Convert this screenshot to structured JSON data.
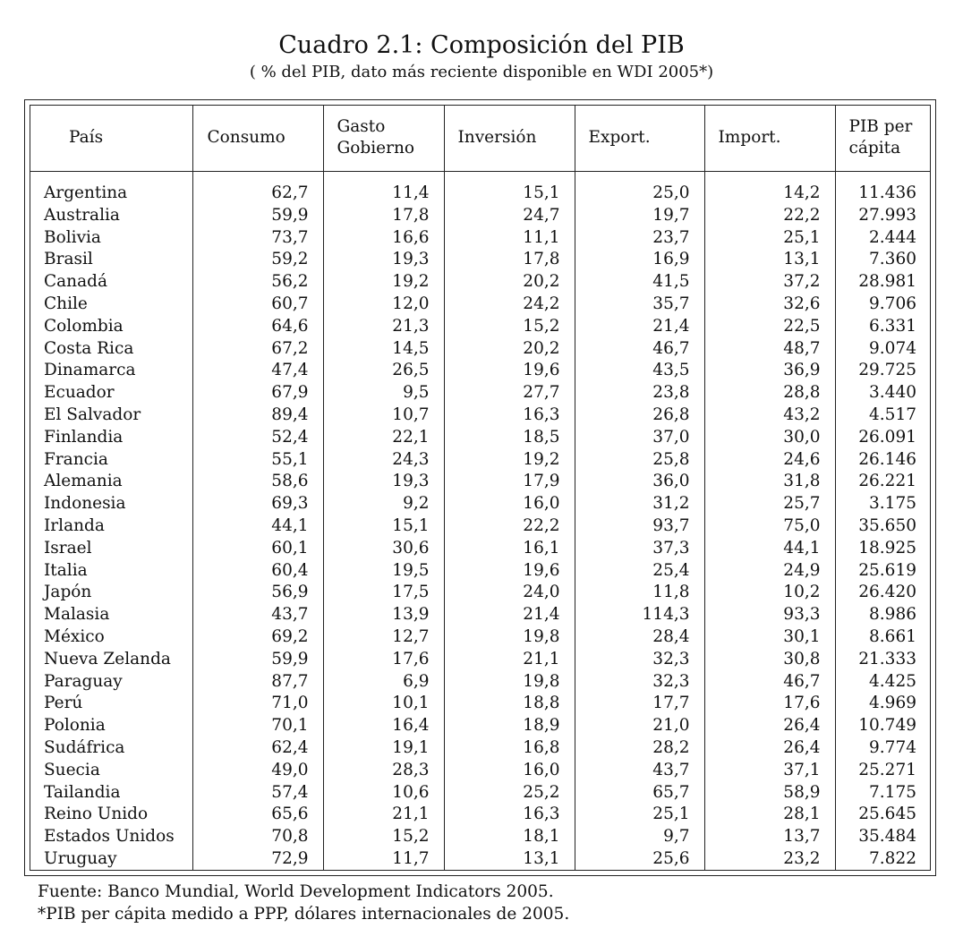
{
  "title": "Cuadro 2.1: Composición del PIB",
  "subtitle": "( % del PIB, dato más reciente disponible en WDI 2005*)",
  "headers": {
    "pais": "País",
    "consumo": "Consumo",
    "gasto_line1": "Gasto",
    "gasto_line2": "Gobierno",
    "inversion": "Inversión",
    "export": "Export.",
    "import": "Import.",
    "pib_line1": "PIB per",
    "pib_line2": "cápita"
  },
  "rows": [
    [
      "Argentina",
      "62,7",
      "11,4",
      "15,1",
      "25,0",
      "14,2",
      "11.436"
    ],
    [
      "Australia",
      "59,9",
      "17,8",
      "24,7",
      "19,7",
      "22,2",
      "27.993"
    ],
    [
      "Bolivia",
      "73,7",
      "16,6",
      "11,1",
      "23,7",
      "25,1",
      "2.444"
    ],
    [
      "Brasil",
      "59,2",
      "19,3",
      "17,8",
      "16,9",
      "13,1",
      "7.360"
    ],
    [
      "Canadá",
      "56,2",
      "19,2",
      "20,2",
      "41,5",
      "37,2",
      "28.981"
    ],
    [
      "Chile",
      "60,7",
      "12,0",
      "24,2",
      "35,7",
      "32,6",
      "9.706"
    ],
    [
      "Colombia",
      "64,6",
      "21,3",
      "15,2",
      "21,4",
      "22,5",
      "6.331"
    ],
    [
      "Costa Rica",
      "67,2",
      "14,5",
      "20,2",
      "46,7",
      "48,7",
      "9.074"
    ],
    [
      "Dinamarca",
      "47,4",
      "26,5",
      "19,6",
      "43,5",
      "36,9",
      "29.725"
    ],
    [
      "Ecuador",
      "67,9",
      "9,5",
      "27,7",
      "23,8",
      "28,8",
      "3.440"
    ],
    [
      "El Salvador",
      "89,4",
      "10,7",
      "16,3",
      "26,8",
      "43,2",
      "4.517"
    ],
    [
      "Finlandia",
      "52,4",
      "22,1",
      "18,5",
      "37,0",
      "30,0",
      "26.091"
    ],
    [
      "Francia",
      "55,1",
      "24,3",
      "19,2",
      "25,8",
      "24,6",
      "26.146"
    ],
    [
      "Alemania",
      "58,6",
      "19,3",
      "17,9",
      "36,0",
      "31,8",
      "26.221"
    ],
    [
      "Indonesia",
      "69,3",
      "9,2",
      "16,0",
      "31,2",
      "25,7",
      "3.175"
    ],
    [
      "Irlanda",
      "44,1",
      "15,1",
      "22,2",
      "93,7",
      "75,0",
      "35.650"
    ],
    [
      "Israel",
      "60,1",
      "30,6",
      "16,1",
      "37,3",
      "44,1",
      "18.925"
    ],
    [
      "Italia",
      "60,4",
      "19,5",
      "19,6",
      "25,4",
      "24,9",
      "25.619"
    ],
    [
      "Japón",
      "56,9",
      "17,5",
      "24,0",
      "11,8",
      "10,2",
      "26.420"
    ],
    [
      "Malasia",
      "43,7",
      "13,9",
      "21,4",
      "114,3",
      "93,3",
      "8.986"
    ],
    [
      "México",
      "69,2",
      "12,7",
      "19,8",
      "28,4",
      "30,1",
      "8.661"
    ],
    [
      "Nueva Zelanda",
      "59,9",
      "17,6",
      "21,1",
      "32,3",
      "30,8",
      "21.333"
    ],
    [
      "Paraguay",
      "87,7",
      "6,9",
      "19,8",
      "32,3",
      "46,7",
      "4.425"
    ],
    [
      "Perú",
      "71,0",
      "10,1",
      "18,8",
      "17,7",
      "17,6",
      "4.969"
    ],
    [
      "Polonia",
      "70,1",
      "16,4",
      "18,9",
      "21,0",
      "26,4",
      "10.749"
    ],
    [
      "Sudáfrica",
      "62,4",
      "19,1",
      "16,8",
      "28,2",
      "26,4",
      "9.774"
    ],
    [
      "Suecia",
      "49,0",
      "28,3",
      "16,0",
      "43,7",
      "37,1",
      "25.271"
    ],
    [
      "Tailandia",
      "57,4",
      "10,6",
      "25,2",
      "65,7",
      "58,9",
      "7.175"
    ],
    [
      "Reino Unido",
      "65,6",
      "21,1",
      "16,3",
      "25,1",
      "28,1",
      "25.645"
    ],
    [
      "Estados Unidos",
      "70,8",
      "15,2",
      "18,1",
      "9,7",
      "13,7",
      "35.484"
    ],
    [
      "Uruguay",
      "72,9",
      "11,7",
      "13,1",
      "25,6",
      "23,2",
      "7.822"
    ]
  ],
  "footnotes": {
    "source": "Fuente: Banco Mundial, World Development Indicators 2005.",
    "note": "*PIB per cápita medido a PPP, dólares internacionales de 2005."
  }
}
